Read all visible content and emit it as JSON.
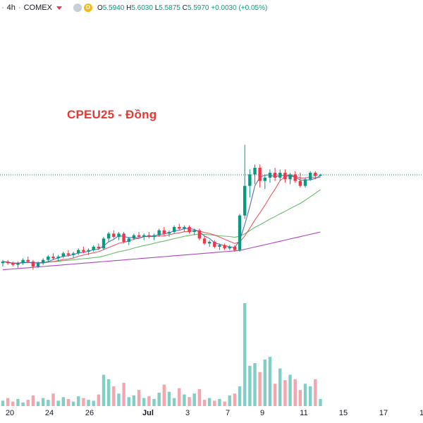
{
  "header": {
    "interval": "4h",
    "separator": "·",
    "exchange": "COMEX",
    "badge_d": "D",
    "open_label": "O",
    "open": "5.5940",
    "high_label": "H",
    "high": "5.6030",
    "low_label": "L",
    "low": "5.5875",
    "close_label": "C",
    "close": "5.5970",
    "change": "+0.0030 (+0.05%)"
  },
  "annotation": {
    "title": "CPEU25 - Đồng"
  },
  "x_axis": {
    "labels": [
      "20",
      "24",
      "26",
      "Jul",
      "3",
      "7",
      "9",
      "11",
      "15",
      "17",
      "1"
    ]
  },
  "colors": {
    "up": "#089981",
    "down": "#f23645",
    "ma_fast": "#3f51b5",
    "ma_mid": "#e53950",
    "ma_slow": "#4caf50",
    "ma_long": "#9c27b0",
    "vol_up": "#7fcfc4",
    "vol_down": "#f3a6ad"
  },
  "chart_data": {
    "type": "candlestick",
    "instrument": "CPEU25",
    "interval": "4h",
    "exchange": "COMEX",
    "last_close": 5.597,
    "series_note": "prices estimated; y axis not printed",
    "candles": [
      [
        5.06,
        5.08,
        5.04,
        5.07
      ],
      [
        5.07,
        5.08,
        5.05,
        5.06
      ],
      [
        5.06,
        5.07,
        5.04,
        5.05
      ],
      [
        5.05,
        5.07,
        5.03,
        5.06
      ],
      [
        5.06,
        5.09,
        5.05,
        5.08
      ],
      [
        5.08,
        5.1,
        5.06,
        5.07
      ],
      [
        5.07,
        5.08,
        5.02,
        5.04
      ],
      [
        5.04,
        5.07,
        5.03,
        5.06
      ],
      [
        5.06,
        5.09,
        5.05,
        5.08
      ],
      [
        5.08,
        5.11,
        5.07,
        5.1
      ],
      [
        5.1,
        5.12,
        5.08,
        5.09
      ],
      [
        5.09,
        5.11,
        5.07,
        5.1
      ],
      [
        5.1,
        5.13,
        5.09,
        5.12
      ],
      [
        5.12,
        5.14,
        5.1,
        5.11
      ],
      [
        5.11,
        5.13,
        5.09,
        5.12
      ],
      [
        5.12,
        5.15,
        5.11,
        5.14
      ],
      [
        5.14,
        5.16,
        5.12,
        5.13
      ],
      [
        5.13,
        5.15,
        5.11,
        5.14
      ],
      [
        5.14,
        5.17,
        5.13,
        5.16
      ],
      [
        5.16,
        5.18,
        5.14,
        5.15
      ],
      [
        5.15,
        5.22,
        5.14,
        5.21
      ],
      [
        5.21,
        5.25,
        5.19,
        5.24
      ],
      [
        5.24,
        5.26,
        5.21,
        5.22
      ],
      [
        5.22,
        5.25,
        5.2,
        5.24
      ],
      [
        5.24,
        5.25,
        5.18,
        5.19
      ],
      [
        5.19,
        5.22,
        5.17,
        5.21
      ],
      [
        5.21,
        5.24,
        5.2,
        5.23
      ],
      [
        5.23,
        5.25,
        5.21,
        5.22
      ],
      [
        5.22,
        5.24,
        5.2,
        5.23
      ],
      [
        5.23,
        5.25,
        5.21,
        5.22
      ],
      [
        5.22,
        5.24,
        5.2,
        5.23
      ],
      [
        5.23,
        5.27,
        5.22,
        5.26
      ],
      [
        5.26,
        5.28,
        5.23,
        5.24
      ],
      [
        5.24,
        5.26,
        5.22,
        5.25
      ],
      [
        5.25,
        5.29,
        5.24,
        5.28
      ],
      [
        5.28,
        5.3,
        5.26,
        5.27
      ],
      [
        5.27,
        5.29,
        5.25,
        5.28
      ],
      [
        5.28,
        5.29,
        5.24,
        5.25
      ],
      [
        5.25,
        5.27,
        5.23,
        5.26
      ],
      [
        5.26,
        5.27,
        5.2,
        5.21
      ],
      [
        5.21,
        5.23,
        5.17,
        5.18
      ],
      [
        5.18,
        5.2,
        5.16,
        5.19
      ],
      [
        5.19,
        5.2,
        5.15,
        5.16
      ],
      [
        5.16,
        5.18,
        5.14,
        5.17
      ],
      [
        5.17,
        5.18,
        5.14,
        5.15
      ],
      [
        5.15,
        5.17,
        5.14,
        5.16
      ],
      [
        5.16,
        5.17,
        5.13,
        5.14
      ],
      [
        5.14,
        5.36,
        5.13,
        5.35
      ],
      [
        5.35,
        5.78,
        5.33,
        5.53
      ],
      [
        5.53,
        5.63,
        5.46,
        5.6
      ],
      [
        5.6,
        5.66,
        5.54,
        5.64
      ],
      [
        5.64,
        5.66,
        5.52,
        5.56
      ],
      [
        5.56,
        5.6,
        5.51,
        5.58
      ],
      [
        5.58,
        5.63,
        5.55,
        5.61
      ],
      [
        5.61,
        5.64,
        5.56,
        5.58
      ],
      [
        5.58,
        5.63,
        5.56,
        5.61
      ],
      [
        5.61,
        5.63,
        5.55,
        5.57
      ],
      [
        5.57,
        5.61,
        5.54,
        5.6
      ],
      [
        5.6,
        5.62,
        5.55,
        5.56
      ],
      [
        5.56,
        5.61,
        5.52,
        5.53
      ],
      [
        5.53,
        5.58,
        5.52,
        5.57
      ],
      [
        5.57,
        5.62,
        5.56,
        5.61
      ],
      [
        5.61,
        5.62,
        5.57,
        5.59
      ],
      [
        5.594,
        5.603,
        5.5875,
        5.597
      ]
    ],
    "volume": [
      6,
      9,
      5,
      8,
      4,
      7,
      12,
      5,
      9,
      7,
      14,
      6,
      10,
      8,
      5,
      11,
      9,
      7,
      6,
      13,
      35,
      30,
      22,
      14,
      26,
      10,
      12,
      18,
      9,
      11,
      8,
      15,
      24,
      16,
      9,
      20,
      13,
      10,
      14,
      19,
      7,
      9,
      6,
      8,
      5,
      12,
      14,
      22,
      115,
      45,
      48,
      38,
      52,
      55,
      25,
      42,
      29,
      35,
      30,
      18,
      25,
      22,
      30,
      8
    ],
    "indicators": {
      "ma_fast": "blue",
      "ma_mid": "red",
      "ma_slow": "green",
      "ma_long": "purple"
    },
    "price_line": 5.597
  }
}
